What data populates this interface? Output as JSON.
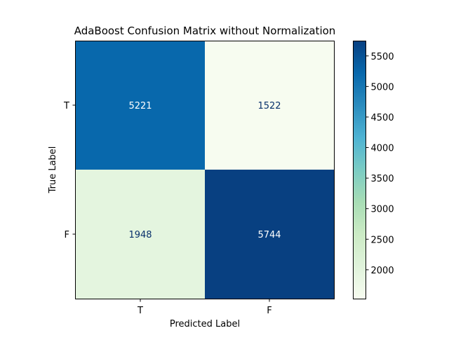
{
  "chart_data": {
    "type": "heatmap",
    "title": "AdaBoost Confusion Matrix without Normalization",
    "xlabel": "Predicted Label",
    "ylabel": "True Label",
    "x_categories": [
      "T",
      "F"
    ],
    "y_categories": [
      "T",
      "F"
    ],
    "values": [
      [
        5221,
        1522
      ],
      [
        1948,
        5744
      ]
    ],
    "colormap": "GnBu",
    "color_range": [
      1522,
      5744
    ],
    "colorbar_ticks": [
      2000,
      2500,
      3000,
      3500,
      4000,
      4500,
      5000,
      5500
    ],
    "colorbar_tick_labels": [
      "2000",
      "2500",
      "3000",
      "3500",
      "4000",
      "4500",
      "5000",
      "5500"
    ],
    "colorbar_placement": "right",
    "grid": false,
    "text_colors": {
      "dark_cell": "#ffffff",
      "light_cell": "#08306b"
    }
  }
}
